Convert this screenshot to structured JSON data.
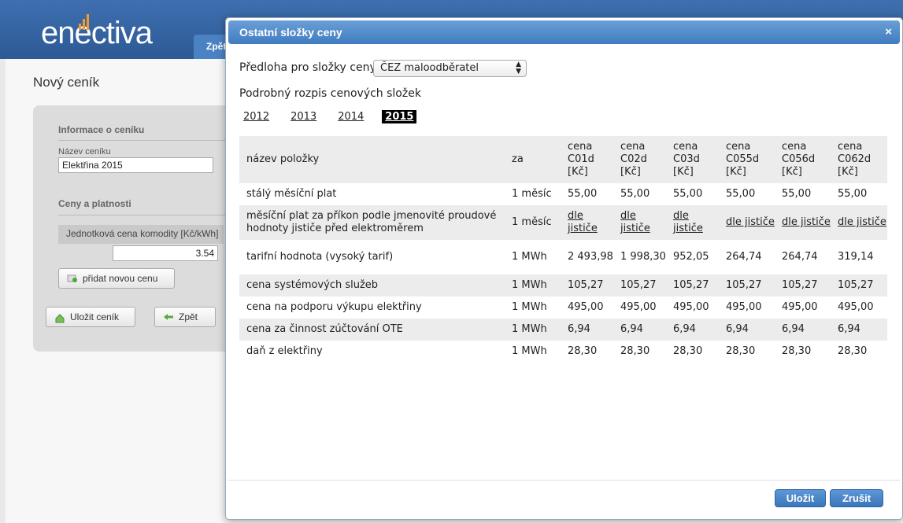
{
  "app": {
    "logo_text": "enectiva",
    "nav_tab_label": "Zpět"
  },
  "page": {
    "title": "Nový ceník",
    "info_section": "Informace o ceníku",
    "name_label": "Název ceníku",
    "name_value": "Elektřina 2015",
    "prices_section": "Ceny a platnosti",
    "commodity_column": "Jednotková cena komodity [Kč/kWh]",
    "commodity_value": "3.54",
    "add_price_button": "přidat novou cenu",
    "save_button": "Uložit ceník",
    "back_button": "Zpět"
  },
  "modal": {
    "title": "Ostatní složky ceny",
    "close_glyph": "×",
    "template_label": "Předloha pro složky ceny",
    "template_value": "ČEZ maloodběratel",
    "breakdown_title": "Podrobný rozpis cenových složek",
    "years": [
      "2012",
      "2013",
      "2014",
      "2015"
    ],
    "active_year": "2015",
    "table": {
      "headers": {
        "name": "název položky",
        "per": "za",
        "c1": "cena C01d [Kč]",
        "c2": "cena C02d [Kč]",
        "c3": "cena C03d [Kč]",
        "c4": "cena C055d [Kč]",
        "c5": "cena C056d [Kč]",
        "c6": "cena C062d [Kč]"
      },
      "rows": [
        {
          "name": "stálý měsíční plat",
          "per": "1 měsíc",
          "values": [
            "55,00",
            "55,00",
            "55,00",
            "55,00",
            "55,00",
            "55,00"
          ]
        },
        {
          "name": "měsíční plat za příkon podle jmenovité proudové hodnoty jističe před elektroměrem",
          "per": "1 měsíc",
          "values": [
            "dle jističe",
            "dle jističe",
            "dle jističe",
            "dle jističe",
            "dle jističe",
            "dle jističe"
          ]
        },
        {
          "name": "tarifní hodnota (vysoký tarif)",
          "per": "1 MWh",
          "values": [
            "2 493,98",
            "1 998,30",
            "952,05",
            "264,74",
            "264,74",
            "319,14"
          ]
        },
        {
          "name": "cena systémových služeb",
          "per": "1 MWh",
          "values": [
            "105,27",
            "105,27",
            "105,27",
            "105,27",
            "105,27",
            "105,27"
          ]
        },
        {
          "name": "cena na podporu výkupu elektřiny",
          "per": "1 MWh",
          "values": [
            "495,00",
            "495,00",
            "495,00",
            "495,00",
            "495,00",
            "495,00"
          ]
        },
        {
          "name": "cena za činnost zúčtování OTE",
          "per": "1 MWh",
          "values": [
            "6,94",
            "6,94",
            "6,94",
            "6,94",
            "6,94",
            "6,94"
          ]
        },
        {
          "name": "daň z elektřiny",
          "per": "1 MWh",
          "values": [
            "28,30",
            "28,30",
            "28,30",
            "28,30",
            "28,30",
            "28,30"
          ]
        }
      ]
    },
    "save_button": "Uložit",
    "cancel_button": "Zrušit"
  }
}
